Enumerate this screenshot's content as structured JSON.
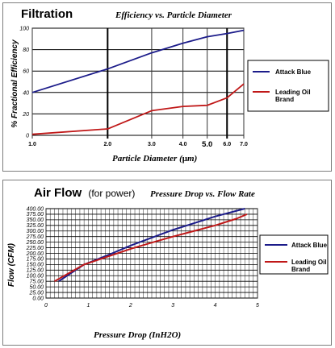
{
  "chart_data": [
    {
      "type": "line",
      "main_title": "Filtration",
      "title": "Efficiency vs. Particle Diameter",
      "xlabel": "Particle Diameter (um)",
      "ylabel": "% Fractional Efficiency",
      "x_scale": "log",
      "xlim": [
        1.0,
        7.0
      ],
      "ylim": [
        0,
        100
      ],
      "x_ticks": [
        1.0,
        2.0,
        3.0,
        4.0,
        5.0,
        6.0,
        7.0
      ],
      "x_tick_labels": [
        "1.0",
        "2.0",
        "3.0",
        "4.0",
        "5.0",
        "6.0",
        "7.0"
      ],
      "y_ticks": [
        0,
        20,
        40,
        60,
        80,
        100
      ],
      "y_tick_labels": [
        "0",
        "20",
        "40",
        "60",
        "80",
        "100"
      ],
      "grid": true,
      "legend_position": "right",
      "series": [
        {
          "name": "Attack Blue",
          "color": "#1c1c8a",
          "x": [
            1.0,
            2.0,
            3.0,
            4.0,
            5.0,
            6.0,
            7.0
          ],
          "y": [
            40,
            62,
            77,
            86,
            92,
            95,
            98
          ]
        },
        {
          "name": "Leading Oil Brand",
          "color": "#c01818",
          "x": [
            1.0,
            2.0,
            3.0,
            4.0,
            5.0,
            6.0,
            7.0
          ],
          "y": [
            1,
            6,
            23,
            27,
            28,
            35,
            48
          ]
        }
      ]
    },
    {
      "type": "line",
      "main_title": "Air Flow",
      "main_title_suffix": "(for power)",
      "title": "Pressure Drop vs. Flow Rate",
      "xlabel": "Pressure Drop (InH2O)",
      "ylabel": "Flow (CFM)",
      "xlim": [
        0,
        5
      ],
      "ylim": [
        0,
        400
      ],
      "x_ticks": [
        0,
        1,
        2,
        3,
        4,
        5
      ],
      "x_tick_labels": [
        "0",
        "1",
        "2",
        "3",
        "4",
        "5"
      ],
      "y_ticks": [
        0,
        25,
        50,
        75,
        100,
        125,
        150,
        175,
        200,
        225,
        250,
        275,
        300,
        325,
        350,
        375,
        400
      ],
      "y_tick_labels": [
        "0.00",
        "25.00",
        "50.00",
        "75.00",
        "100.00",
        "125.00",
        "150.00",
        "175.00",
        "200.00",
        "225.00",
        "250.00",
        "275.00",
        "300.00",
        "325.00",
        "350.00",
        "375.00",
        "400.00"
      ],
      "grid": true,
      "legend_position": "right",
      "series": [
        {
          "name": "Attack Blue",
          "color": "#1c1c8a",
          "x": [
            0.3,
            0.9,
            1.5,
            2.0,
            2.5,
            3.0,
            3.5,
            4.0,
            4.5,
            4.7
          ],
          "y": [
            75,
            150,
            195,
            235,
            270,
            305,
            335,
            365,
            390,
            400
          ]
        },
        {
          "name": "Leading Oil Brand",
          "color": "#c01818",
          "x": [
            0.2,
            0.9,
            1.5,
            2.0,
            2.5,
            3.0,
            3.5,
            4.0,
            4.5,
            4.75
          ],
          "y": [
            75,
            150,
            188,
            220,
            248,
            275,
            300,
            325,
            355,
            375
          ]
        }
      ]
    }
  ]
}
